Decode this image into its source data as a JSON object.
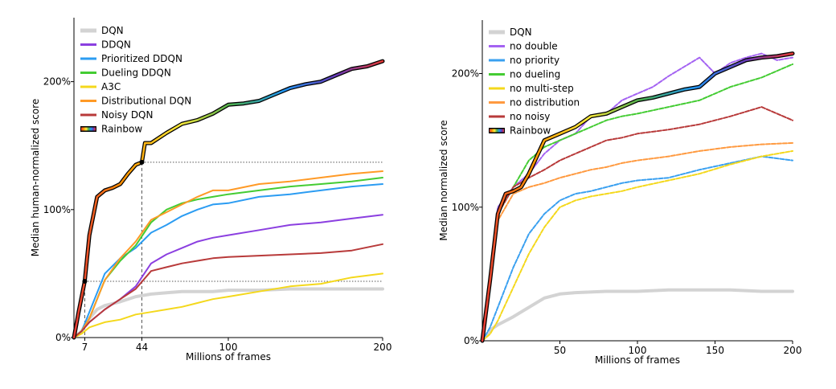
{
  "chart_data": [
    {
      "type": "line",
      "xlabel": "Millions of frames",
      "ylabel": "Median human-normalized score",
      "xlim": [
        0,
        200
      ],
      "ylim": [
        0,
        250
      ],
      "xticks": [
        7,
        44,
        100,
        200
      ],
      "xtick_labels": [
        "7",
        "44",
        "100",
        "200"
      ],
      "yticks": [
        0,
        100,
        200
      ],
      "ytick_labels": [
        "0%",
        "100%",
        "200%"
      ],
      "grid": false,
      "legend_position": "top-left",
      "annotations": {
        "horizontal_dotted_y": [
          44,
          137
        ],
        "vertical_dashed_x": [
          7,
          44
        ],
        "markers": [
          {
            "x": 7,
            "y": 44
          },
          {
            "x": 44,
            "y": 137
          }
        ]
      },
      "series": [
        {
          "name": "DQN",
          "color": "#d3d3d3",
          "width": 4,
          "style": "solid",
          "x": [
            0,
            5,
            10,
            15,
            20,
            30,
            40,
            50,
            60,
            70,
            80,
            90,
            100,
            120,
            140,
            160,
            180,
            200
          ],
          "y": [
            0,
            5,
            15,
            22,
            25,
            28,
            32,
            34,
            35,
            36,
            36,
            36,
            37,
            37,
            38,
            38,
            38,
            38
          ]
        },
        {
          "name": "DDQN",
          "color": "#8b3fe0",
          "width": 2,
          "style": "solid",
          "x": [
            0,
            5,
            10,
            20,
            30,
            40,
            50,
            60,
            70,
            80,
            90,
            100,
            120,
            140,
            160,
            180,
            200
          ],
          "y": [
            0,
            5,
            12,
            22,
            30,
            40,
            58,
            65,
            70,
            75,
            78,
            80,
            84,
            88,
            90,
            93,
            96
          ]
        },
        {
          "name": "Prioritized DDQN",
          "color": "#2b9cf2",
          "width": 2,
          "style": "solid",
          "x": [
            0,
            5,
            10,
            20,
            30,
            40,
            50,
            60,
            70,
            80,
            90,
            100,
            120,
            140,
            160,
            180,
            200
          ],
          "y": [
            0,
            5,
            20,
            50,
            62,
            70,
            82,
            88,
            95,
            100,
            104,
            105,
            110,
            112,
            115,
            118,
            120
          ]
        },
        {
          "name": "Dueling DDQN",
          "color": "#44cc33",
          "width": 2,
          "style": "solid",
          "x": [
            0,
            5,
            10,
            20,
            30,
            40,
            50,
            60,
            70,
            80,
            90,
            100,
            120,
            140,
            160,
            180,
            200
          ],
          "y": [
            0,
            5,
            15,
            45,
            60,
            72,
            90,
            100,
            105,
            108,
            110,
            112,
            115,
            118,
            120,
            122,
            125
          ]
        },
        {
          "name": "A3C",
          "color": "#f4d81c",
          "width": 2,
          "style": "solid",
          "x": [
            0,
            5,
            10,
            20,
            30,
            40,
            50,
            60,
            70,
            80,
            90,
            100,
            120,
            140,
            160,
            180,
            200
          ],
          "y": [
            0,
            3,
            8,
            12,
            14,
            18,
            20,
            22,
            24,
            27,
            30,
            32,
            36,
            40,
            42,
            47,
            50
          ]
        },
        {
          "name": "Distributional DQN",
          "color": "#ff9a26",
          "width": 2,
          "style": "solid",
          "x": [
            0,
            5,
            10,
            20,
            30,
            40,
            50,
            60,
            70,
            80,
            90,
            100,
            120,
            140,
            160,
            180,
            200
          ],
          "y": [
            0,
            5,
            15,
            45,
            62,
            75,
            92,
            98,
            104,
            110,
            115,
            115,
            120,
            122,
            125,
            128,
            130
          ]
        },
        {
          "name": "Noisy DQN",
          "color": "#b83a3a",
          "width": 2,
          "style": "solid",
          "x": [
            0,
            5,
            10,
            20,
            30,
            40,
            50,
            60,
            70,
            80,
            90,
            100,
            120,
            140,
            160,
            180,
            200
          ],
          "y": [
            0,
            5,
            12,
            22,
            30,
            38,
            52,
            55,
            58,
            60,
            62,
            63,
            64,
            65,
            66,
            68,
            73
          ]
        },
        {
          "name": "Rainbow",
          "color": "rainbow",
          "width": 3.5,
          "style": "solid",
          "x": [
            0,
            3,
            7,
            10,
            15,
            20,
            25,
            30,
            35,
            40,
            44,
            46,
            50,
            60,
            70,
            80,
            90,
            100,
            110,
            120,
            130,
            140,
            150,
            160,
            170,
            180,
            190,
            200
          ],
          "y": [
            0,
            20,
            44,
            80,
            110,
            115,
            117,
            120,
            128,
            135,
            137,
            152,
            152,
            160,
            167,
            170,
            175,
            182,
            183,
            185,
            190,
            195,
            198,
            200,
            205,
            210,
            212,
            216
          ]
        }
      ]
    },
    {
      "type": "line",
      "xlabel": "Millions of frames",
      "ylabel": "Median normalized score",
      "xlim": [
        0,
        200
      ],
      "ylim": [
        0,
        240
      ],
      "xticks": [
        50,
        100,
        150,
        200
      ],
      "xtick_labels": [
        "50",
        "100",
        "150",
        "200"
      ],
      "yticks": [
        0,
        100,
        200
      ],
      "ytick_labels": [
        "0%",
        "100%",
        "200%"
      ],
      "grid": false,
      "legend_position": "top-left",
      "series": [
        {
          "name": "DQN",
          "color": "#d3d3d3",
          "width": 4,
          "style": "solid",
          "x": [
            0,
            5,
            10,
            20,
            30,
            40,
            50,
            60,
            80,
            100,
            120,
            140,
            160,
            180,
            200
          ],
          "y": [
            0,
            8,
            12,
            18,
            25,
            32,
            35,
            36,
            37,
            37,
            38,
            38,
            38,
            37,
            37
          ]
        },
        {
          "name": "no double",
          "color": "#a463f2",
          "width": 2,
          "style": "dashed",
          "x": [
            0,
            5,
            10,
            20,
            30,
            40,
            50,
            60,
            70,
            80,
            90,
            100,
            110,
            120,
            130,
            140,
            150,
            160,
            170,
            180,
            190,
            200
          ],
          "y": [
            0,
            50,
            100,
            115,
            125,
            140,
            150,
            155,
            168,
            170,
            180,
            185,
            190,
            198,
            205,
            212,
            200,
            208,
            212,
            215,
            210,
            212
          ]
        },
        {
          "name": "no priority",
          "color": "#3aa0f0",
          "width": 2,
          "style": "dashed",
          "x": [
            0,
            5,
            10,
            20,
            30,
            40,
            50,
            60,
            70,
            80,
            90,
            100,
            120,
            140,
            160,
            180,
            200
          ],
          "y": [
            0,
            10,
            25,
            55,
            80,
            95,
            105,
            110,
            112,
            115,
            118,
            120,
            122,
            128,
            133,
            138,
            135
          ]
        },
        {
          "name": "no dueling",
          "color": "#44cc33",
          "width": 2,
          "style": "dashed",
          "x": [
            0,
            5,
            10,
            20,
            30,
            40,
            50,
            60,
            70,
            80,
            90,
            100,
            120,
            140,
            160,
            180,
            200
          ],
          "y": [
            0,
            40,
            95,
            115,
            135,
            145,
            150,
            155,
            160,
            165,
            168,
            170,
            175,
            180,
            190,
            197,
            207
          ]
        },
        {
          "name": "no multi-step",
          "color": "#f4d81c",
          "width": 2,
          "style": "dashed",
          "x": [
            0,
            5,
            10,
            20,
            30,
            40,
            50,
            60,
            70,
            80,
            90,
            100,
            120,
            140,
            160,
            180,
            200
          ],
          "y": [
            0,
            5,
            15,
            40,
            65,
            85,
            100,
            105,
            108,
            110,
            112,
            115,
            120,
            125,
            132,
            138,
            142
          ]
        },
        {
          "name": "no distribution",
          "color": "#ff9a40",
          "width": 2,
          "style": "dashed",
          "x": [
            0,
            5,
            10,
            20,
            30,
            40,
            50,
            60,
            70,
            80,
            90,
            100,
            120,
            140,
            160,
            180,
            200
          ],
          "y": [
            0,
            40,
            90,
            110,
            115,
            118,
            122,
            125,
            128,
            130,
            133,
            135,
            138,
            142,
            145,
            147,
            148
          ]
        },
        {
          "name": "no noisy",
          "color": "#b83a3a",
          "width": 2,
          "style": "dashed",
          "x": [
            0,
            5,
            10,
            20,
            30,
            40,
            50,
            60,
            70,
            80,
            90,
            100,
            120,
            140,
            160,
            180,
            200
          ],
          "y": [
            0,
            45,
            95,
            115,
            122,
            128,
            135,
            140,
            145,
            150,
            152,
            155,
            158,
            162,
            168,
            175,
            165
          ]
        },
        {
          "name": "Rainbow",
          "color": "rainbow",
          "width": 3.5,
          "style": "solid",
          "x": [
            0,
            5,
            10,
            15,
            20,
            25,
            30,
            40,
            50,
            60,
            70,
            80,
            90,
            100,
            110,
            120,
            130,
            140,
            150,
            160,
            170,
            180,
            190,
            200
          ],
          "y": [
            0,
            45,
            95,
            110,
            112,
            115,
            125,
            150,
            155,
            160,
            168,
            170,
            175,
            180,
            182,
            185,
            188,
            190,
            200,
            205,
            210,
            212,
            213,
            215
          ]
        }
      ]
    }
  ]
}
